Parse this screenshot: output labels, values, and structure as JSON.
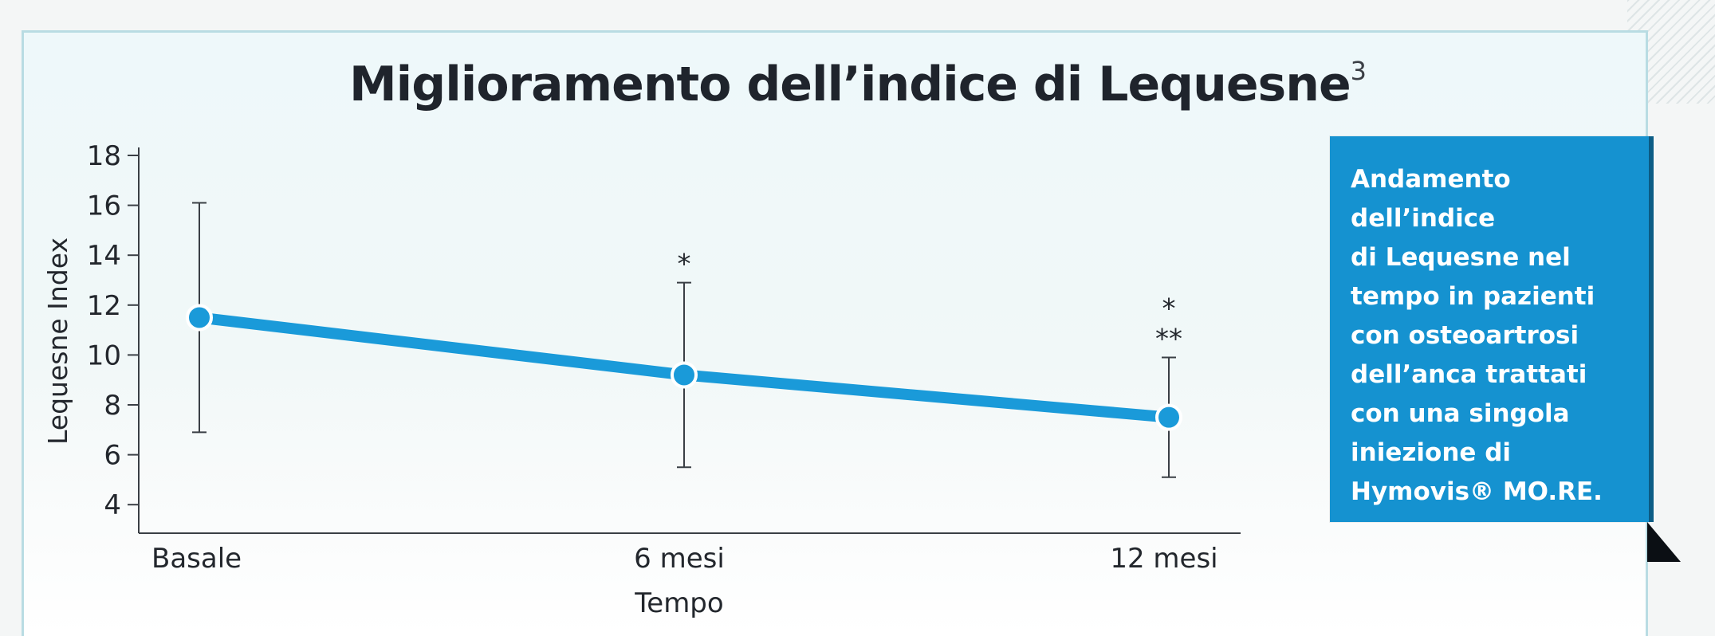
{
  "title": "Miglioramento dell’indice di Lequesne",
  "title_ref": "3",
  "callout": {
    "text": "Andamento dell’indice\ndi Lequesne nel\ntempo in pazienti\ncon osteoartrosi\ndell’anca trattati\ncon una singola\niniezione di\nHymovis® MO.RE."
  },
  "chart_data": {
    "type": "line",
    "title": "Miglioramento dell’indice di Lequesne",
    "xlabel": "Tempo",
    "ylabel": "Lequesne Index",
    "categories": [
      "Basale",
      "6 mesi",
      "12 mesi"
    ],
    "yticks": [
      "4",
      "6",
      "8",
      "10",
      "12",
      "14",
      "16",
      "18"
    ],
    "ylim": [
      3,
      18
    ],
    "series": [
      {
        "values": [
          11.5,
          9.2,
          7.5
        ],
        "error_low": [
          6.9,
          5.5,
          5.1
        ],
        "error_high": [
          16.1,
          12.9,
          9.9
        ]
      }
    ],
    "annotations": [
      "",
      "*",
      "*\n**"
    ],
    "line_color": "#1a9ad9",
    "grid": false
  }
}
